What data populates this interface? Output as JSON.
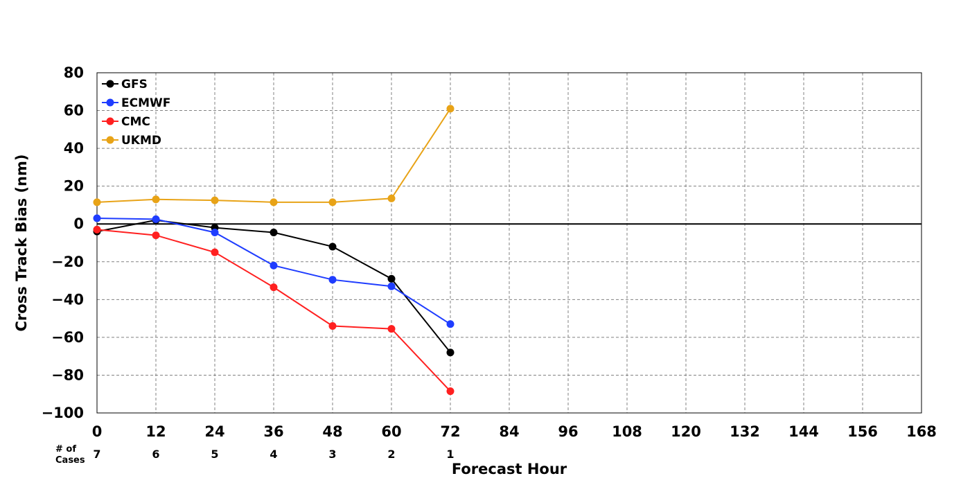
{
  "chart_data": {
    "type": "line",
    "title": "",
    "xlabel": "Forecast Hour",
    "ylabel": "Cross Track Bias (nm)",
    "xlim": [
      0,
      168
    ],
    "ylim": [
      -100,
      80
    ],
    "x_ticks": [
      0,
      12,
      24,
      36,
      48,
      60,
      72,
      84,
      96,
      108,
      120,
      132,
      144,
      156,
      168
    ],
    "x_tick_labels": [
      "0",
      "12",
      "24",
      "36",
      "48",
      "60",
      "72",
      "84",
      "96",
      "108",
      "120",
      "132",
      "144",
      "156",
      "168"
    ],
    "y_ticks": [
      80,
      60,
      40,
      20,
      0,
      -20,
      -40,
      -60,
      -80,
      -100
    ],
    "y_tick_labels": [
      "80",
      "60",
      "40",
      "20",
      "0",
      "−20",
      "−40",
      "−60",
      "−80",
      "−100"
    ],
    "grid": true,
    "legend_position": "top-left",
    "zero_line": true,
    "cases_label": "# of\nCases",
    "cases": [
      {
        "x": 0,
        "label": "7"
      },
      {
        "x": 12,
        "label": "6"
      },
      {
        "x": 24,
        "label": "5"
      },
      {
        "x": 36,
        "label": "4"
      },
      {
        "x": 48,
        "label": "3"
      },
      {
        "x": 60,
        "label": "2"
      },
      {
        "x": 72,
        "label": "1"
      }
    ],
    "series": [
      {
        "name": "GFS",
        "color": "#000000",
        "x": [
          0,
          12,
          24,
          36,
          48,
          60,
          72
        ],
        "values": [
          -4,
          2,
          -2,
          -4.5,
          -12,
          -29,
          -68
        ]
      },
      {
        "name": "ECMWF",
        "color": "#1f3dff",
        "x": [
          0,
          12,
          24,
          36,
          48,
          60,
          72
        ],
        "values": [
          3,
          2.5,
          -4.5,
          -22,
          -29.5,
          -33,
          -53
        ]
      },
      {
        "name": "CMC",
        "color": "#ff2020",
        "x": [
          0,
          12,
          24,
          36,
          48,
          60,
          72
        ],
        "values": [
          -3,
          -6,
          -15,
          -33.5,
          -54,
          -55.5,
          -88.5
        ]
      },
      {
        "name": "UKMD",
        "color": "#e8a317",
        "x": [
          0,
          12,
          24,
          36,
          48,
          60,
          72
        ],
        "values": [
          11.5,
          13,
          12.5,
          11.5,
          11.5,
          13.5,
          61
        ]
      }
    ]
  }
}
